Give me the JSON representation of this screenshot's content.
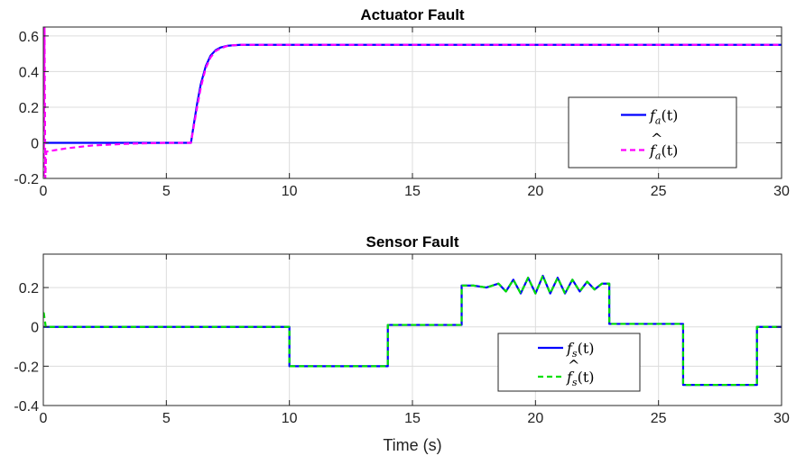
{
  "chart_data": [
    {
      "type": "line",
      "title": "Actuator Fault",
      "xlabel": "",
      "ylabel": "",
      "xlim": [
        0,
        30
      ],
      "ylim": [
        -0.2,
        0.65
      ],
      "xticks": [
        0,
        5,
        10,
        15,
        20,
        25,
        30
      ],
      "yticks": [
        -0.2,
        0,
        0.2,
        0.4,
        0.6
      ],
      "xtick_labels": [
        "0",
        "5",
        "10",
        "15",
        "20",
        "25",
        "30"
      ],
      "ytick_labels": [
        "-0.2",
        "0",
        "0.2",
        "0.4",
        "0.6"
      ],
      "grid": true,
      "legend_position": "right",
      "series": [
        {
          "name_main": "f",
          "name_sub": "a",
          "name_arg": "(t)",
          "hat": false,
          "color": "#0000ff",
          "dash": "solid",
          "x": [
            0,
            6.0,
            6.1,
            6.25,
            6.4,
            6.6,
            6.8,
            7.0,
            7.2,
            7.5,
            8.0,
            9.0,
            30
          ],
          "y": [
            0,
            0,
            0.09,
            0.22,
            0.33,
            0.43,
            0.49,
            0.52,
            0.535,
            0.545,
            0.55,
            0.55,
            0.55
          ]
        },
        {
          "name_main": "f",
          "name_sub": "a",
          "name_arg": "(t)",
          "hat": true,
          "color": "#ff00ff",
          "dash": "dashed",
          "x": [
            0,
            0.02,
            0.05,
            0.08,
            0.12,
            0.3,
            1.0,
            2.0,
            3.5,
            5.0,
            6.0,
            6.1,
            6.25,
            6.4,
            6.6,
            6.8,
            7.0,
            7.2,
            7.5,
            8.0,
            9.0,
            30
          ],
          "y": [
            0.65,
            -0.2,
            0.65,
            -0.2,
            -0.05,
            -0.045,
            -0.03,
            -0.015,
            -0.005,
            0,
            0,
            0.08,
            0.2,
            0.31,
            0.42,
            0.48,
            0.515,
            0.53,
            0.545,
            0.55,
            0.55,
            0.55
          ]
        }
      ]
    },
    {
      "type": "line",
      "title": "Sensor Fault",
      "xlabel": "Time (s)",
      "ylabel": "",
      "xlim": [
        0,
        30
      ],
      "ylim": [
        -0.4,
        0.37
      ],
      "xticks": [
        0,
        5,
        10,
        15,
        20,
        25,
        30
      ],
      "yticks": [
        -0.4,
        -0.2,
        0,
        0.2
      ],
      "xtick_labels": [
        "0",
        "5",
        "10",
        "15",
        "20",
        "25",
        "30"
      ],
      "ytick_labels": [
        "-0.4",
        "-0.2",
        "0",
        "0.2"
      ],
      "grid": true,
      "legend_position": "bottom-center",
      "series": [
        {
          "name_main": "f",
          "name_sub": "s",
          "name_arg": "(t)",
          "hat": false,
          "color": "#0000ff",
          "dash": "solid",
          "x": [
            0,
            10,
            10,
            14,
            14,
            17,
            17,
            17.5,
            18,
            18.5,
            18.8,
            19.1,
            19.4,
            19.7,
            20.0,
            20.3,
            20.6,
            20.9,
            21.2,
            21.5,
            21.8,
            22.1,
            22.4,
            22.7,
            23,
            23,
            26,
            26,
            29,
            29,
            30
          ],
          "y": [
            0,
            0,
            -0.2,
            -0.2,
            0.01,
            0.01,
            0.21,
            0.21,
            0.2,
            0.22,
            0.18,
            0.24,
            0.17,
            0.25,
            0.17,
            0.26,
            0.17,
            0.25,
            0.17,
            0.24,
            0.18,
            0.23,
            0.19,
            0.22,
            0.22,
            0.015,
            0.015,
            -0.295,
            -0.295,
            0,
            0
          ]
        },
        {
          "name_main": "f",
          "name_sub": "s",
          "name_arg": "(t)",
          "hat": true,
          "color": "#00e000",
          "dash": "dashed",
          "x": [
            0,
            0.02,
            0.1,
            10,
            10,
            14,
            14,
            17,
            17,
            17.5,
            18,
            18.5,
            18.8,
            19.1,
            19.4,
            19.7,
            20.0,
            20.3,
            20.6,
            20.9,
            21.2,
            21.5,
            21.8,
            22.1,
            22.4,
            22.7,
            23,
            23,
            26,
            26,
            29,
            29,
            30
          ],
          "y": [
            0.07,
            0.07,
            0,
            0,
            -0.2,
            -0.2,
            0.01,
            0.01,
            0.21,
            0.21,
            0.2,
            0.22,
            0.18,
            0.24,
            0.17,
            0.25,
            0.17,
            0.26,
            0.17,
            0.25,
            0.17,
            0.24,
            0.18,
            0.23,
            0.19,
            0.22,
            0.22,
            0.015,
            0.015,
            -0.295,
            -0.295,
            0,
            0
          ]
        }
      ]
    }
  ]
}
